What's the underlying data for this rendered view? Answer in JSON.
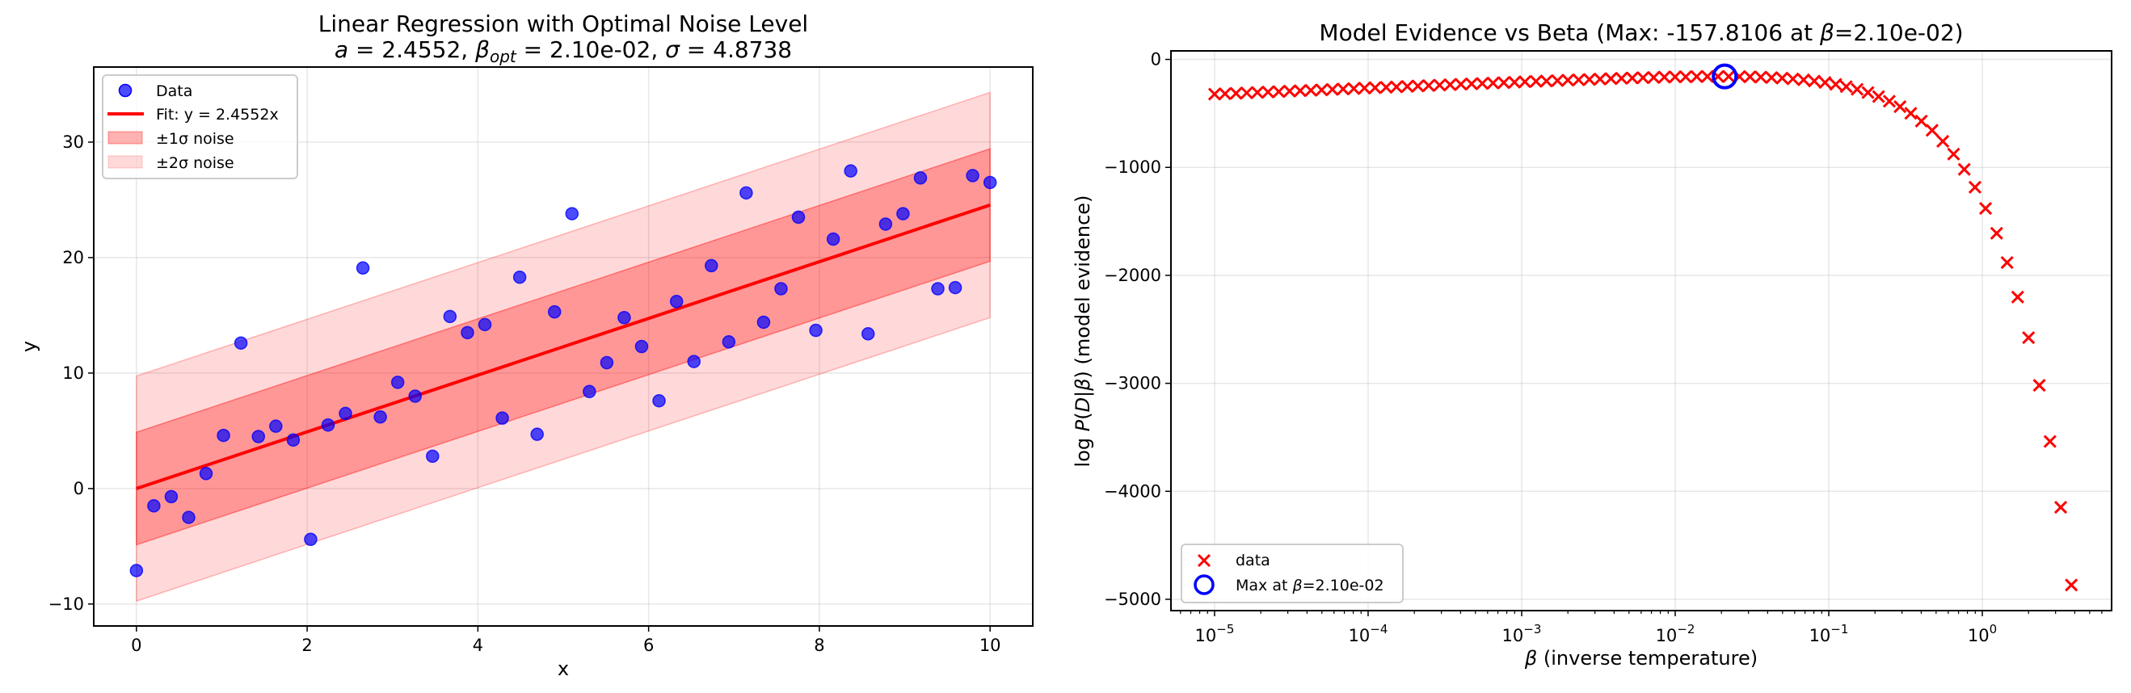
{
  "chart_data": [
    {
      "type": "scatter",
      "title": "Linear Regression with Optimal Noise Level",
      "subtitle": {
        "a_label": "a",
        "a_value": " = 2.4552, ",
        "beta_label": "β",
        "beta_sub": "opt",
        "beta_value": " = 2.10e-02, ",
        "sigma_label": "σ",
        "sigma_value": " = 4.8738"
      },
      "xlabel": "x",
      "ylabel": "y",
      "xlim": [
        -0.5,
        10.5
      ],
      "ylim": [
        -11.9,
        36.5
      ],
      "xticks": [
        0,
        2,
        4,
        6,
        8,
        10
      ],
      "xtick_labels": [
        "0",
        "2",
        "4",
        "6",
        "8",
        "10"
      ],
      "yticks": [
        -10,
        0,
        10,
        20,
        30
      ],
      "ytick_labels": [
        "−10",
        "0",
        "10",
        "20",
        "30"
      ],
      "grid": true,
      "legend_position": "top-left",
      "fit_slope": 2.4552,
      "sigma": 4.8738,
      "x": [
        0,
        0.204,
        0.408,
        0.612,
        0.816,
        1.02,
        1.224,
        1.429,
        1.633,
        1.837,
        2.041,
        2.245,
        2.449,
        2.653,
        2.857,
        3.061,
        3.265,
        3.469,
        3.673,
        3.878,
        4.082,
        4.286,
        4.49,
        4.694,
        4.898,
        5.102,
        5.306,
        5.51,
        5.714,
        5.918,
        6.122,
        6.327,
        6.531,
        6.735,
        6.939,
        7.143,
        7.347,
        7.551,
        7.755,
        7.959,
        8.163,
        8.367,
        8.571,
        8.776,
        8.98,
        9.184,
        9.388,
        9.592,
        9.796,
        10
      ],
      "y": [
        -7.1,
        -1.5,
        -0.7,
        -2.5,
        1.3,
        4.6,
        12.6,
        4.5,
        5.4,
        4.2,
        -4.4,
        5.5,
        6.5,
        19.1,
        6.2,
        9.2,
        8.0,
        2.8,
        14.9,
        13.5,
        14.2,
        6.1,
        18.3,
        4.7,
        15.3,
        23.8,
        8.4,
        10.9,
        14.8,
        12.3,
        7.6,
        16.2,
        11.0,
        19.3,
        12.7,
        25.6,
        14.4,
        17.3,
        23.5,
        13.7,
        21.6,
        27.5,
        13.4,
        22.9,
        23.8,
        26.9,
        17.3,
        17.4,
        27.1,
        26.5
      ],
      "legend": {
        "data": "Data",
        "fit": "Fit: y = 2.4552x",
        "band1": "±1σ noise",
        "band2": "±2σ noise"
      },
      "colors": {
        "points": "#0000ff",
        "fit": "#ff0000",
        "band": "#ff0000"
      }
    },
    {
      "type": "scatter",
      "title_parts": [
        {
          "text": "Model Evidence vs Beta (Max: -157.8106 at ",
          "italic": false
        },
        {
          "text": "β",
          "italic": true
        },
        {
          "text": "=2.10e-02)",
          "italic": false
        }
      ],
      "xlabel_parts": [
        {
          "text": "β",
          "italic": true
        },
        {
          "text": " (inverse temperature)",
          "italic": false
        }
      ],
      "ylabel_parts": [
        {
          "text": "log",
          "italic": false
        },
        {
          "text": " P",
          "italic": true
        },
        {
          "text": "(",
          "italic": false
        },
        {
          "text": "D",
          "italic": true
        },
        {
          "text": "|",
          "italic": false
        },
        {
          "text": "β",
          "italic": true
        },
        {
          "text": ") (model evidence)",
          "italic": false
        }
      ],
      "xscale": "log",
      "xlim": [
        5.2e-06,
        6.95
      ],
      "ylim": [
        -5105,
        79
      ],
      "xtick_exponents": [
        -5,
        -4,
        -3,
        -2,
        -1,
        0
      ],
      "xtick_labels": [
        {
          "base": "10",
          "exp": "−5"
        },
        {
          "base": "10",
          "exp": "−4"
        },
        {
          "base": "10",
          "exp": "−3"
        },
        {
          "base": "10",
          "exp": "−2"
        },
        {
          "base": "10",
          "exp": "−1"
        },
        {
          "base": "10",
          "exp": "0"
        }
      ],
      "yticks": [
        0,
        -1000,
        -2000,
        -3000,
        -4000,
        -5000
      ],
      "ytick_labels": [
        "0",
        "−1000",
        "−2000",
        "−3000",
        "−4000",
        "−5000"
      ],
      "grid": true,
      "legend_position": "bottom-left",
      "beta": [
        1e-05,
        1.17e-05,
        1.38e-05,
        1.62e-05,
        1.9e-05,
        2.23e-05,
        2.62e-05,
        3.08e-05,
        3.61e-05,
        4.24e-05,
        4.98e-05,
        5.85e-05,
        6.87e-05,
        8.07e-05,
        9.47e-05,
        0.000111,
        0.000131,
        0.000153,
        0.00018,
        0.000211,
        0.000248,
        0.000292,
        0.000342,
        0.000402,
        0.000472,
        0.000554,
        0.000651,
        0.000765,
        0.000898,
        0.00105,
        0.00124,
        0.00145,
        0.00171,
        0.002,
        0.00235,
        0.00276,
        0.00324,
        0.00381,
        0.00447,
        0.00525,
        0.00617,
        0.00724,
        0.0085,
        0.00998,
        0.0117,
        0.0138,
        0.0162,
        0.019,
        0.0223,
        0.0262,
        0.0307,
        0.0361,
        0.0424,
        0.0497,
        0.0584,
        0.0686,
        0.0805,
        0.0946,
        0.111,
        0.13,
        0.153,
        0.18,
        0.211,
        0.248,
        0.291,
        0.342,
        0.401,
        0.471,
        0.553,
        0.65,
        0.763,
        0.896,
        1.05,
        1.24,
        1.45,
        1.7,
        2.0,
        2.35,
        2.76,
        3.24,
        3.8
      ],
      "log_evidence": [
        -322,
        -318,
        -314,
        -310,
        -306,
        -302,
        -298,
        -294,
        -290,
        -286,
        -282,
        -278,
        -274,
        -270,
        -266,
        -262,
        -258,
        -254,
        -250,
        -246,
        -242,
        -238,
        -234,
        -230,
        -226,
        -223,
        -219,
        -215,
        -211,
        -207,
        -203,
        -200,
        -196,
        -192,
        -189,
        -185,
        -182,
        -178,
        -175,
        -172,
        -169,
        -167,
        -164,
        -162,
        -161,
        -159,
        -158,
        -158,
        -158,
        -159,
        -161,
        -164,
        -168,
        -173,
        -180,
        -189,
        -200,
        -214,
        -231,
        -252,
        -277,
        -307,
        -344,
        -387,
        -438,
        -499,
        -571,
        -656,
        -758,
        -877,
        -1018,
        -1184,
        -1380,
        -1610,
        -1881,
        -2201,
        -2577,
        -3018,
        -3538,
        -4148,
        -4868
      ],
      "max_point": {
        "beta": 0.021,
        "value": -157.8106
      },
      "legend": {
        "data": "data",
        "max_parts": [
          {
            "text": "Max at ",
            "italic": false
          },
          {
            "text": "β",
            "italic": true
          },
          {
            "text": "=2.10e-02",
            "italic": false
          }
        ]
      },
      "colors": {
        "markers": "#ff0000",
        "max_marker": "#0000ff"
      }
    }
  ]
}
